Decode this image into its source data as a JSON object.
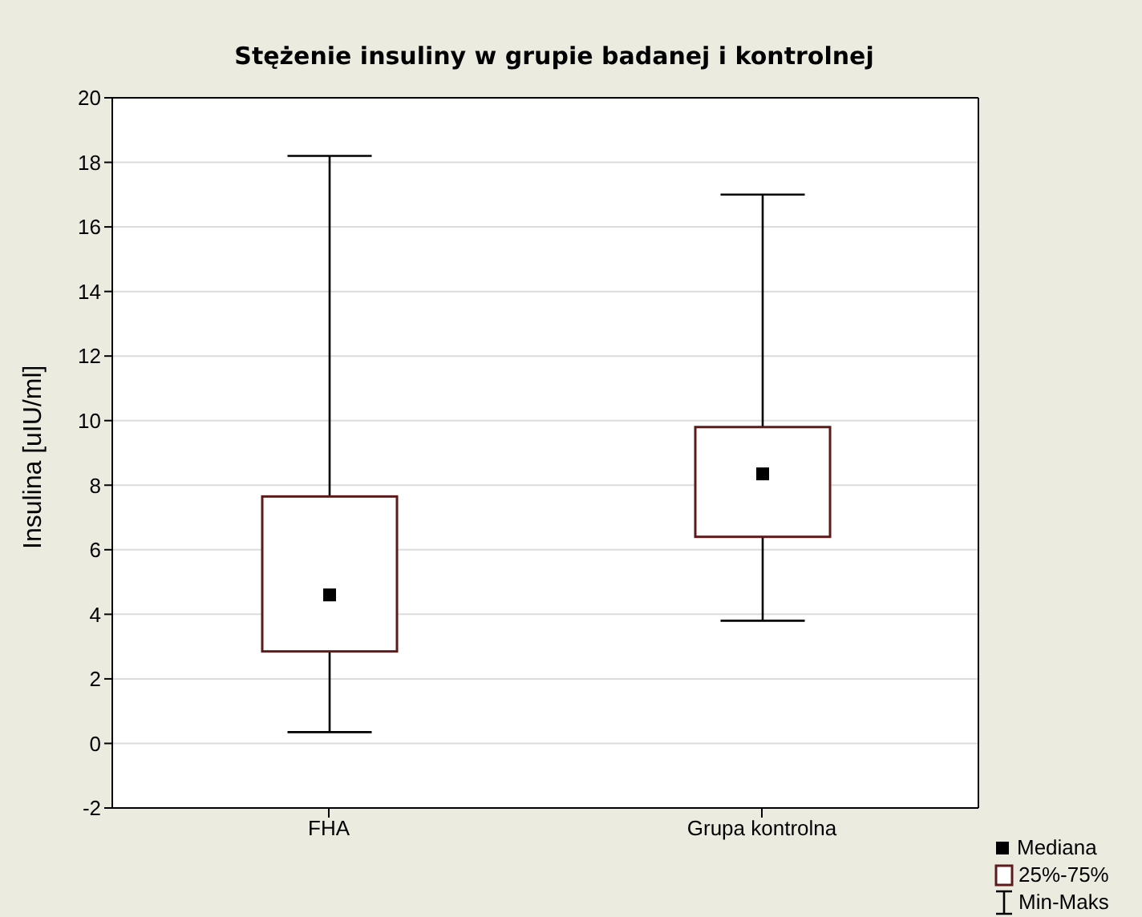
{
  "chart_data": {
    "type": "box",
    "title": "Stężenie insuliny w grupie badanej i kontrolnej",
    "ylabel": "Insulina [uIU/ml]",
    "categories": [
      "FHA",
      "Grupa kontrolna"
    ],
    "boxes": [
      {
        "low": 0.35,
        "q1": 2.85,
        "median": 4.6,
        "q3": 7.65,
        "high": 18.2
      },
      {
        "low": 3.8,
        "q1": 6.4,
        "median": 8.35,
        "q3": 9.8,
        "high": 17.0
      }
    ],
    "color": "#5c1a1a",
    "ylim": [
      -2,
      20
    ],
    "yticks": [
      -2,
      0,
      2,
      4,
      6,
      8,
      10,
      12,
      14,
      16,
      18,
      20
    ],
    "grid": "y",
    "annotations": [
      "Mediana",
      "25%-75%",
      "Min-Maks"
    ]
  }
}
